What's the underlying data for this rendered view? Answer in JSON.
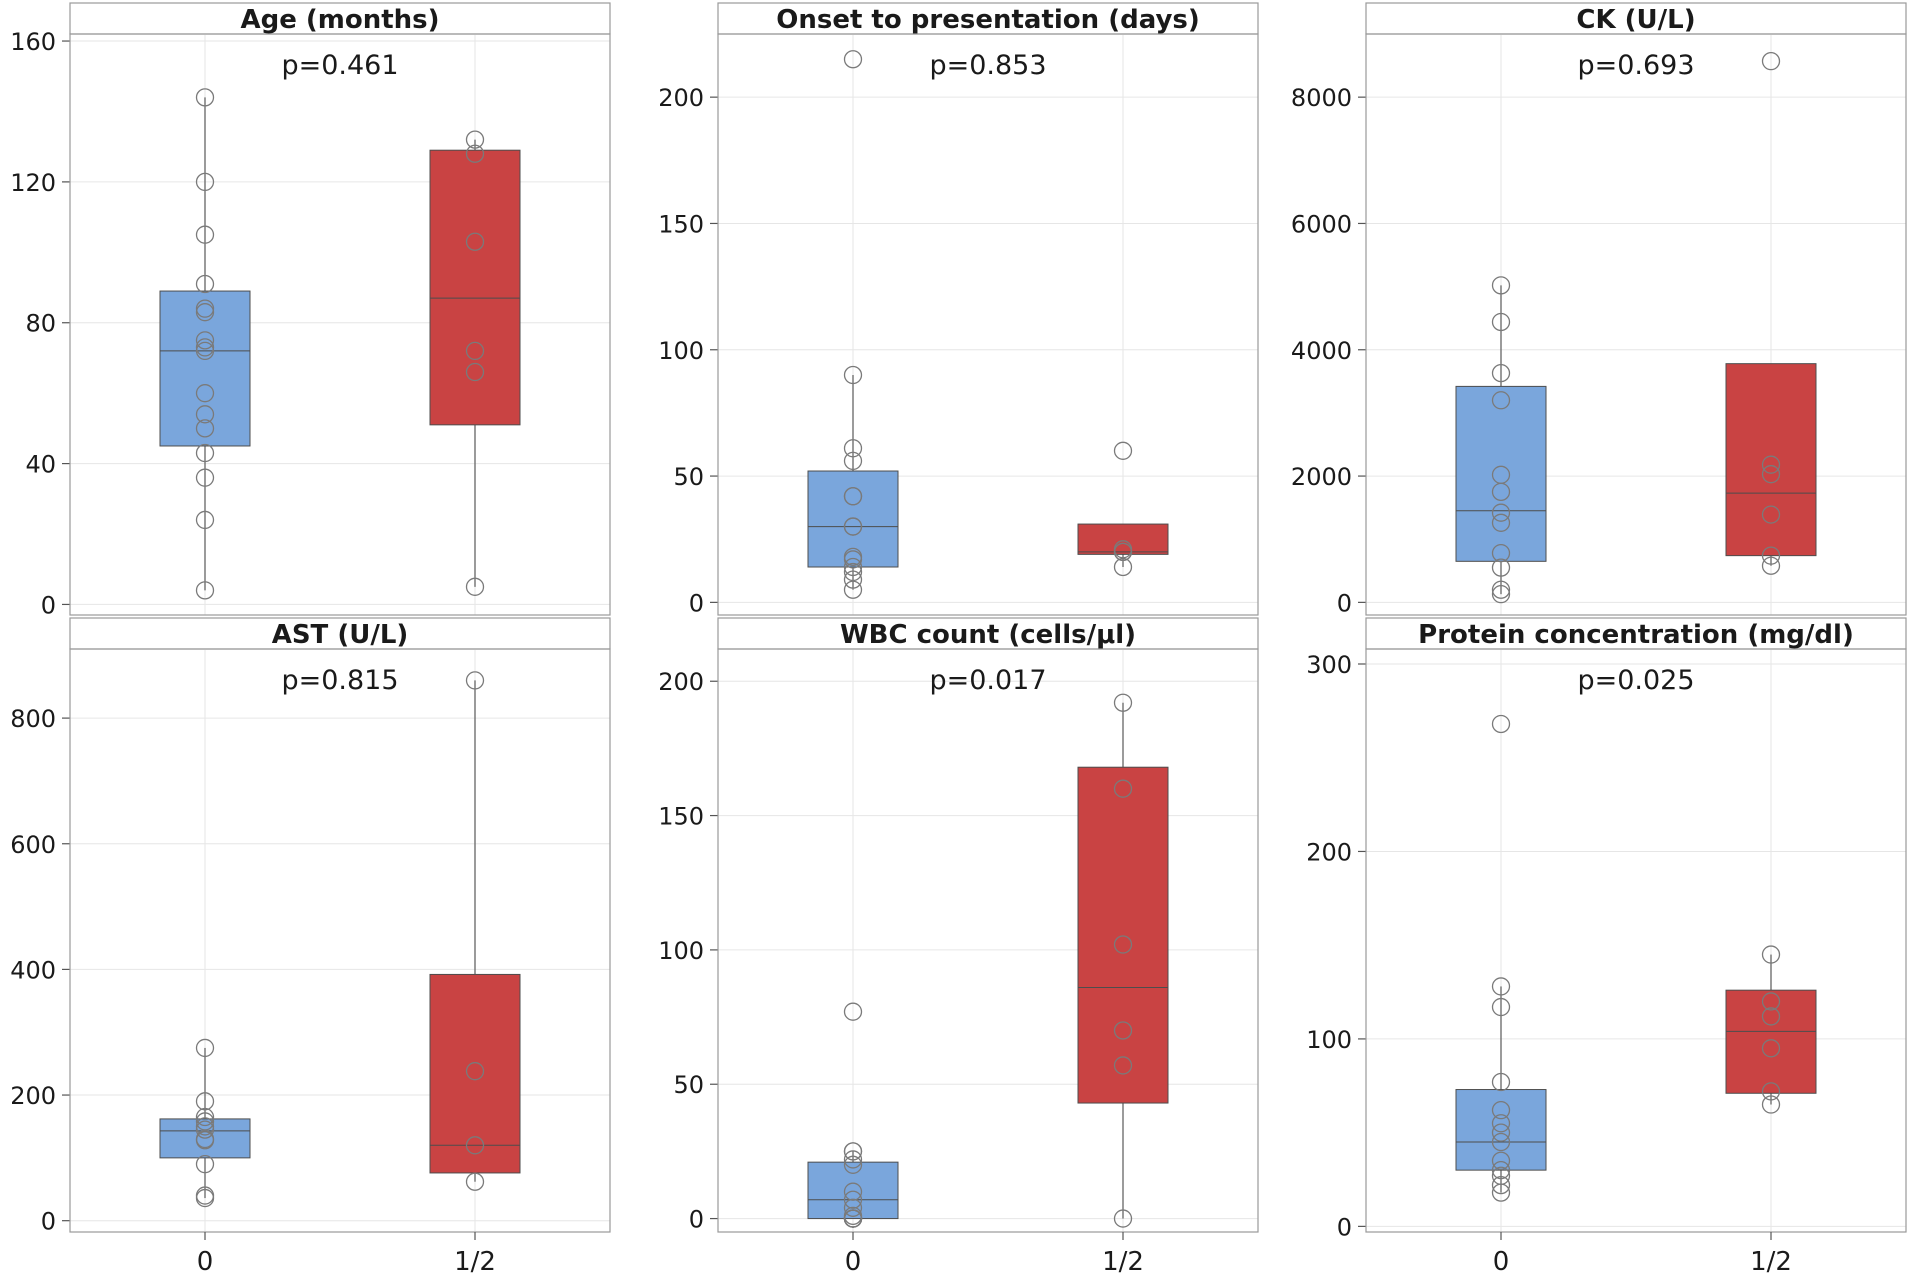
{
  "figure": {
    "x_categories": [
      "0",
      "1/2"
    ],
    "group_colors": {
      "0": "#7aa6dc",
      "1/2": "#c94343"
    }
  },
  "chart_data": [
    {
      "type": "box",
      "title": "Age (months)",
      "p_value": "p=0.461",
      "categories": [
        "0",
        "1/2"
      ],
      "yticks": [
        0,
        40,
        80,
        120,
        160
      ],
      "ylim": [
        -3,
        162
      ],
      "boxes": [
        {
          "group": "0",
          "q1": 45,
          "median": 72,
          "q3": 89,
          "whisker_low": 4,
          "whisker_high": 144,
          "points": [
            4,
            24,
            36,
            43,
            50,
            54,
            60,
            72,
            73,
            75,
            83,
            84,
            91,
            105,
            120,
            144
          ]
        },
        {
          "group": "1/2",
          "q1": 51,
          "median": 87,
          "q3": 129,
          "whisker_low": 5,
          "whisker_high": 132,
          "points": [
            5,
            66,
            72,
            103,
            128,
            132
          ]
        }
      ]
    },
    {
      "type": "box",
      "title": "Onset to presentation (days)",
      "p_value": "p=0.853",
      "categories": [
        "0",
        "1/2"
      ],
      "yticks": [
        0,
        50,
        100,
        150,
        200
      ],
      "ylim": [
        -5,
        225
      ],
      "boxes": [
        {
          "group": "0",
          "q1": 14,
          "median": 30,
          "q3": 52,
          "whisker_low": 5,
          "whisker_high": 90,
          "points": [
            5,
            9,
            12,
            14,
            17,
            18,
            30,
            30,
            42,
            42,
            56,
            61,
            90,
            215
          ]
        },
        {
          "group": "1/2",
          "q1": 19,
          "median": 20,
          "q3": 31,
          "whisker_low": 14,
          "whisker_high": 31,
          "points": [
            14,
            20,
            20,
            21,
            60
          ]
        }
      ]
    },
    {
      "type": "box",
      "title": "CK (U/L)",
      "p_value": "p=0.693",
      "categories": [
        "0",
        "1/2"
      ],
      "yticks": [
        0,
        2000,
        4000,
        6000,
        8000
      ],
      "ylim": [
        -200,
        9000
      ],
      "boxes": [
        {
          "group": "0",
          "q1": 650,
          "median": 1450,
          "q3": 3420,
          "whisker_low": 130,
          "whisker_high": 5020,
          "points": [
            130,
            200,
            550,
            780,
            1260,
            1420,
            1750,
            2020,
            3200,
            3630,
            4440,
            5020
          ]
        },
        {
          "group": "1/2",
          "q1": 740,
          "median": 1730,
          "q3": 3780,
          "whisker_low": 580,
          "whisker_high": 3780,
          "points": [
            580,
            740,
            1390,
            2030,
            2180,
            8570
          ]
        }
      ]
    },
    {
      "type": "box",
      "title": "AST (U/L)",
      "p_value": "p=0.815",
      "categories": [
        "0",
        "1/2"
      ],
      "yticks": [
        0,
        200,
        400,
        600,
        800
      ],
      "ylim": [
        -18,
        910
      ],
      "boxes": [
        {
          "group": "0",
          "q1": 100,
          "median": 143,
          "q3": 162,
          "whisker_low": 36,
          "whisker_high": 275,
          "points": [
            36,
            40,
            90,
            128,
            130,
            145,
            150,
            158,
            165,
            190,
            275
          ]
        },
        {
          "group": "1/2",
          "q1": 76,
          "median": 120,
          "q3": 392,
          "whisker_low": 62,
          "whisker_high": 860,
          "points": [
            62,
            120,
            238,
            860
          ]
        }
      ]
    },
    {
      "type": "box",
      "title": "WBC count (cells/μl)",
      "p_value": "p=0.017",
      "categories": [
        "0",
        "1/2"
      ],
      "yticks": [
        0,
        50,
        100,
        150,
        200
      ],
      "ylim": [
        -5,
        212
      ],
      "boxes": [
        {
          "group": "0",
          "q1": 0,
          "median": 7,
          "q3": 21,
          "whisker_low": 0,
          "whisker_high": 25,
          "points": [
            0,
            0,
            0,
            0,
            0,
            1,
            4,
            7,
            10,
            20,
            22,
            25,
            25,
            77
          ]
        },
        {
          "group": "1/2",
          "q1": 43,
          "median": 86,
          "q3": 168,
          "whisker_low": 0,
          "whisker_high": 192,
          "points": [
            0,
            57,
            70,
            102,
            160,
            192
          ]
        }
      ]
    },
    {
      "type": "box",
      "title": "Protein concentration (mg/dl)",
      "p_value": "p=0.025",
      "categories": [
        "0",
        "1/2"
      ],
      "yticks": [
        0,
        100,
        200,
        300
      ],
      "ylim": [
        -3,
        308
      ],
      "boxes": [
        {
          "group": "0",
          "q1": 30,
          "median": 45,
          "q3": 73,
          "whisker_low": 18,
          "whisker_high": 128,
          "points": [
            18,
            22,
            27,
            30,
            35,
            45,
            50,
            55,
            62,
            77,
            117,
            128,
            268
          ]
        },
        {
          "group": "1/2",
          "q1": 71,
          "median": 104,
          "q3": 126,
          "whisker_low": 65,
          "whisker_high": 145,
          "points": [
            65,
            72,
            95,
            112,
            120,
            145
          ]
        }
      ]
    }
  ]
}
